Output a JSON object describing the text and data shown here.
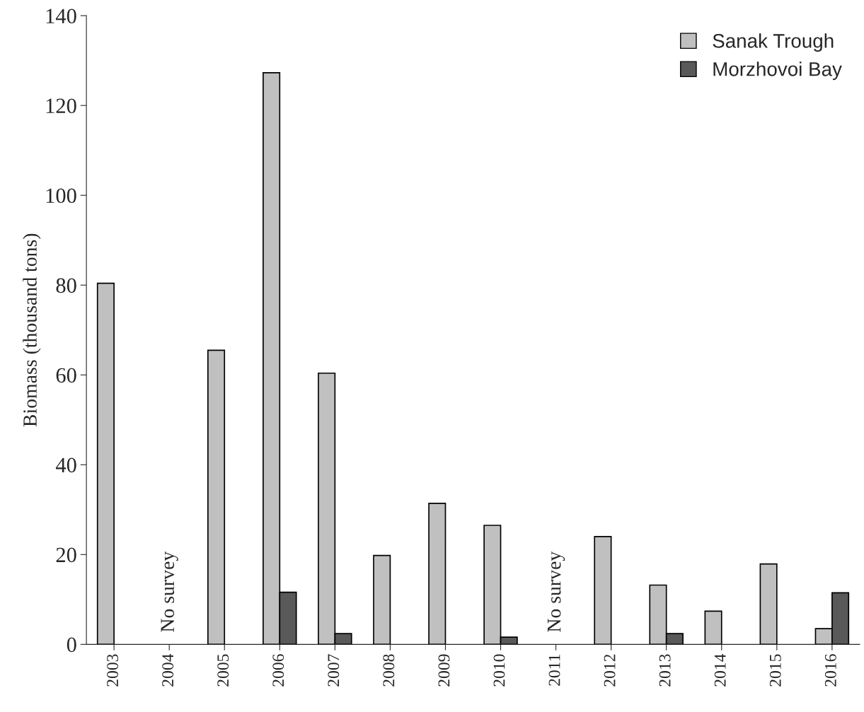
{
  "chart_data": {
    "type": "bar",
    "ylabel": "Biomass (thousand tons)",
    "categories": [
      "2003",
      "2004",
      "2005",
      "2006",
      "2007",
      "2008",
      "2009",
      "2010",
      "2011",
      "2012",
      "2013",
      "2014",
      "2015",
      "2016"
    ],
    "series": [
      {
        "name": "Sanak Trough",
        "color": "#c0c0c0",
        "values": [
          80.4,
          null,
          65.5,
          127.3,
          60.4,
          19.8,
          31.4,
          26.5,
          null,
          24.0,
          13.2,
          7.4,
          17.9,
          3.5
        ]
      },
      {
        "name": "Morzhovoi Bay",
        "color": "#595959",
        "values": [
          null,
          null,
          null,
          11.6,
          2.4,
          null,
          null,
          1.6,
          null,
          null,
          2.4,
          null,
          null,
          11.5
        ]
      }
    ],
    "ylim": [
      0,
      140
    ],
    "yticks": [
      0,
      20,
      40,
      60,
      80,
      100,
      120,
      140
    ],
    "annotations": [
      "No survey",
      "No survey"
    ],
    "grid": false,
    "legend": "top right"
  }
}
